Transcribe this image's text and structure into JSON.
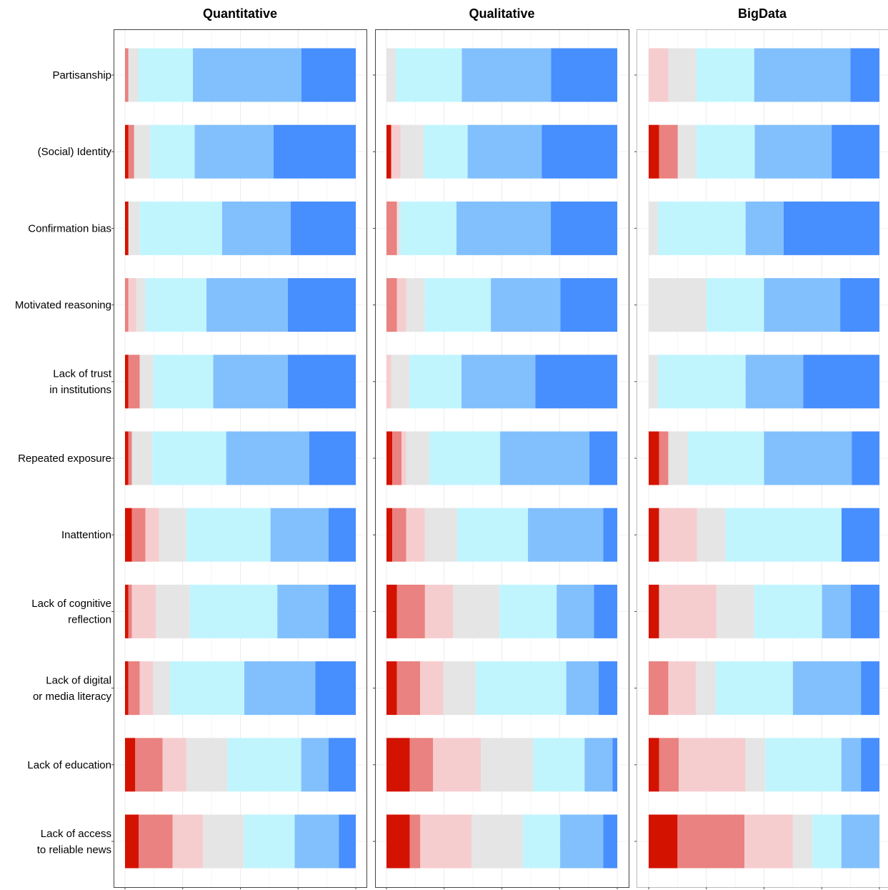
{
  "chart_data": {
    "type": "bar",
    "orientation": "horizontal",
    "stacked": "100%",
    "xlabel": "",
    "ylabel": "",
    "grid": true,
    "legend": "none",
    "categories": [
      [
        "Partisanship"
      ],
      [
        "(Social) Identity"
      ],
      [
        "Confirmation bias"
      ],
      [
        "Motivated reasoning"
      ],
      [
        "Lack of trust",
        "in institutions"
      ],
      [
        "Repeated exposure"
      ],
      [
        "Inattention"
      ],
      [
        "Lack of cognitive",
        "reflection"
      ],
      [
        "Lack of digital",
        "or media literacy"
      ],
      [
        "Lack of education"
      ],
      [
        "Lack of access",
        "to reliable news"
      ]
    ],
    "segment_colors": [
      "#d41200",
      "#e98280",
      "#f6cdcf",
      "#e5e5e5",
      "#c1f5fe",
      "#82c0fd",
      "#478efe"
    ],
    "panels": [
      {
        "title": "Quantitative",
        "rows": [
          [
            0,
            1.5,
            0,
            4.5,
            24,
            48,
            24
          ],
          [
            1.5,
            2.5,
            0,
            7,
            19.5,
            34.5,
            36
          ],
          [
            1.5,
            0,
            0,
            5,
            36,
            30,
            28.5
          ],
          [
            0,
            1.5,
            3.5,
            4,
            27,
            36,
            30
          ],
          [
            1.5,
            5,
            0,
            6,
            26.5,
            33,
            30
          ],
          [
            1.5,
            1.5,
            0,
            9,
            32.5,
            36.5,
            20.5
          ],
          [
            3,
            6,
            6,
            12,
            37,
            25.5,
            12
          ],
          [
            1.5,
            1.5,
            10.5,
            15,
            38.5,
            22.5,
            12
          ],
          [
            1.5,
            5,
            6,
            7.5,
            33,
            31.5,
            18
          ],
          [
            4.5,
            12,
            10.5,
            18,
            32.5,
            12,
            12
          ],
          [
            6,
            15,
            13.5,
            18,
            22.5,
            19.5,
            7.5
          ]
        ]
      },
      {
        "title": "Qualitative",
        "rows": [
          [
            0,
            0,
            0,
            4,
            28.5,
            38.5,
            28.5
          ],
          [
            2,
            0,
            4,
            10,
            19,
            32,
            32.5
          ],
          [
            0,
            4.5,
            0,
            1.5,
            24,
            40.5,
            28.5
          ],
          [
            0,
            4.5,
            4,
            8,
            28.5,
            30,
            24.5
          ],
          [
            0,
            0,
            2,
            8,
            22.5,
            32,
            35.5
          ],
          [
            2.5,
            4,
            2,
            10,
            30.5,
            38.5,
            12
          ],
          [
            2.5,
            6,
            8,
            14,
            30.5,
            32.5,
            6
          ],
          [
            4.5,
            12,
            12,
            20,
            24.5,
            16,
            10
          ],
          [
            4.5,
            10,
            10,
            14,
            39,
            14,
            8
          ],
          [
            10,
            10,
            20.5,
            22.5,
            22,
            12,
            2
          ],
          [
            10,
            4.5,
            22,
            22,
            16,
            18.5,
            6
          ]
        ]
      },
      {
        "title": "BigData",
        "rows": [
          [
            0,
            0,
            8.5,
            12,
            25,
            41.5,
            12.5
          ],
          [
            4.5,
            8,
            0,
            8,
            25,
            33,
            20.5
          ],
          [
            0,
            0,
            0,
            4,
            38,
            16.5,
            41.5
          ],
          [
            0,
            0,
            0,
            25,
            25,
            33,
            17
          ],
          [
            0,
            0,
            0,
            4,
            38,
            25,
            33
          ],
          [
            4.5,
            4,
            0,
            8.5,
            33,
            38,
            12
          ],
          [
            4.5,
            0,
            16.5,
            12.5,
            50.5,
            0,
            16.5
          ],
          [
            4.5,
            0,
            25,
            16.5,
            29.5,
            12.5,
            12.5
          ],
          [
            0,
            8.5,
            12,
            8.5,
            33.5,
            29.5,
            8
          ],
          [
            4.5,
            8.5,
            29,
            8.5,
            33,
            8.5,
            8
          ],
          [
            12.5,
            29,
            21,
            8.5,
            12.5,
            16.5,
            0
          ]
        ]
      }
    ]
  }
}
